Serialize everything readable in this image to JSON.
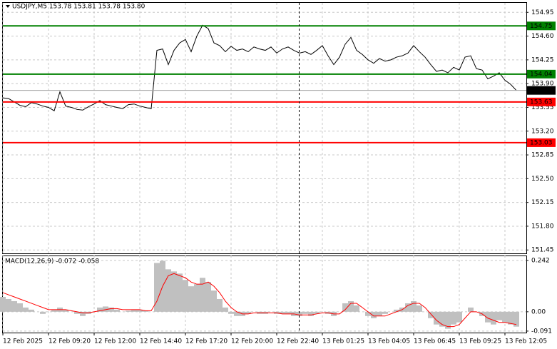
{
  "chart_data": [
    {
      "type": "line",
      "title": "USDJPY,M5  153.78 153.81 153.78 153.80",
      "color": "#000000",
      "grid": true,
      "ylim": [
        151.4,
        155.1
      ],
      "yticks": [
        154.95,
        {
          "value": 154.6,
          "label": "154.60"
        },
        154.25,
        {
          "value": 153.9,
          "label": "153.90"
        },
        153.55,
        {
          "value": 153.2,
          "label": "153.20"
        },
        152.85,
        {
          "value": 152.5,
          "label": "152.50"
        },
        152.15,
        {
          "value": 151.8,
          "label": "151.80"
        },
        151.45
      ],
      "levels": [
        {
          "value": 154.75,
          "color": "#008000"
        },
        {
          "value": 154.04,
          "color": "#008000"
        },
        {
          "value": 153.63,
          "color": "#ff0000"
        },
        {
          "value": 153.03,
          "color": "#ff0000"
        }
      ],
      "current": {
        "value": 153.8,
        "label": "153.80",
        "color": "#000000"
      },
      "values": [
        153.69,
        153.68,
        153.63,
        153.58,
        153.56,
        153.62,
        153.6,
        153.57,
        153.55,
        153.5,
        153.78,
        153.57,
        153.55,
        153.52,
        153.51,
        153.56,
        153.6,
        153.65,
        153.59,
        153.57,
        153.55,
        153.53,
        153.59,
        153.6,
        153.57,
        153.55,
        153.53,
        154.39,
        154.41,
        154.18,
        154.39,
        154.5,
        154.55,
        154.37,
        154.6,
        154.76,
        154.71,
        154.5,
        154.46,
        154.37,
        154.45,
        154.39,
        154.41,
        154.37,
        154.44,
        154.41,
        154.39,
        154.44,
        154.35,
        154.41,
        154.44,
        154.39,
        154.35,
        154.37,
        154.33,
        154.39,
        154.46,
        154.31,
        154.18,
        154.29,
        154.48,
        154.58,
        154.39,
        154.33,
        154.25,
        154.2,
        154.27,
        154.23,
        154.25,
        154.29,
        154.31,
        154.35,
        154.46,
        154.37,
        154.29,
        154.18,
        154.08,
        154.1,
        154.06,
        154.14,
        154.1,
        154.29,
        154.31,
        154.12,
        154.1,
        153.97,
        154.01,
        154.06,
        153.95,
        153.89,
        153.8
      ]
    },
    {
      "type": "macd",
      "title": "MACD(12,26,9) -0.072 -0.058",
      "color": "#c0c0c0",
      "grid": true,
      "ylim": [
        -0.098,
        0.265
      ],
      "yticks": [
        0.242,
        {
          "value": 0,
          "label": "0.00"
        },
        -0.091
      ],
      "categories": [
        "12 Feb 2025",
        null,
        null,
        null,
        null,
        null,
        null,
        null,
        "12 Feb 09:20",
        null,
        null,
        null,
        null,
        null,
        null,
        null,
        "12 Feb 12:00",
        null,
        null,
        null,
        null,
        null,
        null,
        null,
        "12 Feb 14:40",
        null,
        null,
        null,
        null,
        null,
        null,
        null,
        "12 Feb 17:20",
        null,
        null,
        null,
        null,
        null,
        null,
        null,
        "12 Feb 20:00",
        null,
        null,
        null,
        null,
        null,
        null,
        null,
        "12 Feb 22:40",
        null,
        null,
        null,
        null,
        null,
        null,
        null,
        "13 Feb 01:25",
        null,
        null,
        null,
        null,
        null,
        null,
        null,
        "13 Feb 04:05",
        null,
        null,
        null,
        null,
        null,
        null,
        null,
        "13 Feb 06:45",
        null,
        null,
        null,
        null,
        null,
        null,
        null,
        "13 Feb 09:25",
        null,
        null,
        null,
        null,
        null,
        null,
        null,
        "13 Feb 12:05",
        null,
        null
      ],
      "values": [
        0.07,
        0.06,
        0.05,
        0.04,
        0.02,
        0.01,
        0.0,
        -0.01,
        0.0,
        0.01,
        0.02,
        0.01,
        0.0,
        -0.01,
        -0.02,
        -0.01,
        0.0,
        0.02,
        0.025,
        0.02,
        0.01,
        0.0,
        0.005,
        0.01,
        0.01,
        0.005,
        0.0,
        0.23,
        0.24,
        0.2,
        0.19,
        0.18,
        0.15,
        0.12,
        0.13,
        0.16,
        0.14,
        0.1,
        0.06,
        0.02,
        -0.01,
        -0.02,
        -0.02,
        -0.01,
        0.0,
        -0.01,
        -0.01,
        0.0,
        -0.01,
        -0.01,
        -0.01,
        -0.02,
        -0.02,
        -0.01,
        -0.02,
        -0.01,
        0.0,
        -0.01,
        -0.02,
        0.0,
        0.04,
        0.05,
        0.03,
        0.0,
        -0.02,
        -0.03,
        -0.02,
        -0.01,
        0.0,
        0.01,
        0.02,
        0.04,
        0.05,
        0.03,
        0.0,
        -0.03,
        -0.06,
        -0.07,
        -0.08,
        -0.06,
        -0.05,
        0.0,
        0.02,
        0.0,
        -0.02,
        -0.05,
        -0.06,
        -0.04,
        -0.05,
        -0.06,
        -0.07
      ],
      "signal": {
        "color": "#ff0000",
        "values": [
          0.09,
          0.08,
          0.07,
          0.06,
          0.05,
          0.04,
          0.03,
          0.02,
          0.01,
          0.01,
          0.01,
          0.01,
          0.005,
          0.0,
          -0.005,
          -0.005,
          0.0,
          0.005,
          0.01,
          0.015,
          0.015,
          0.01,
          0.01,
          0.01,
          0.01,
          0.005,
          0.005,
          0.05,
          0.12,
          0.17,
          0.18,
          0.17,
          0.16,
          0.14,
          0.13,
          0.13,
          0.14,
          0.12,
          0.09,
          0.05,
          0.02,
          0.0,
          -0.01,
          -0.01,
          -0.005,
          -0.005,
          -0.005,
          -0.005,
          -0.005,
          -0.01,
          -0.01,
          -0.01,
          -0.015,
          -0.015,
          -0.015,
          -0.01,
          -0.005,
          -0.005,
          -0.01,
          -0.01,
          0.01,
          0.04,
          0.04,
          0.02,
          0.0,
          -0.02,
          -0.02,
          -0.02,
          -0.01,
          0.0,
          0.01,
          0.03,
          0.04,
          0.04,
          0.02,
          -0.01,
          -0.04,
          -0.06,
          -0.07,
          -0.07,
          -0.06,
          -0.03,
          0.0,
          0.0,
          -0.01,
          -0.03,
          -0.04,
          -0.05,
          -0.05,
          -0.055,
          -0.06
        ]
      }
    }
  ]
}
